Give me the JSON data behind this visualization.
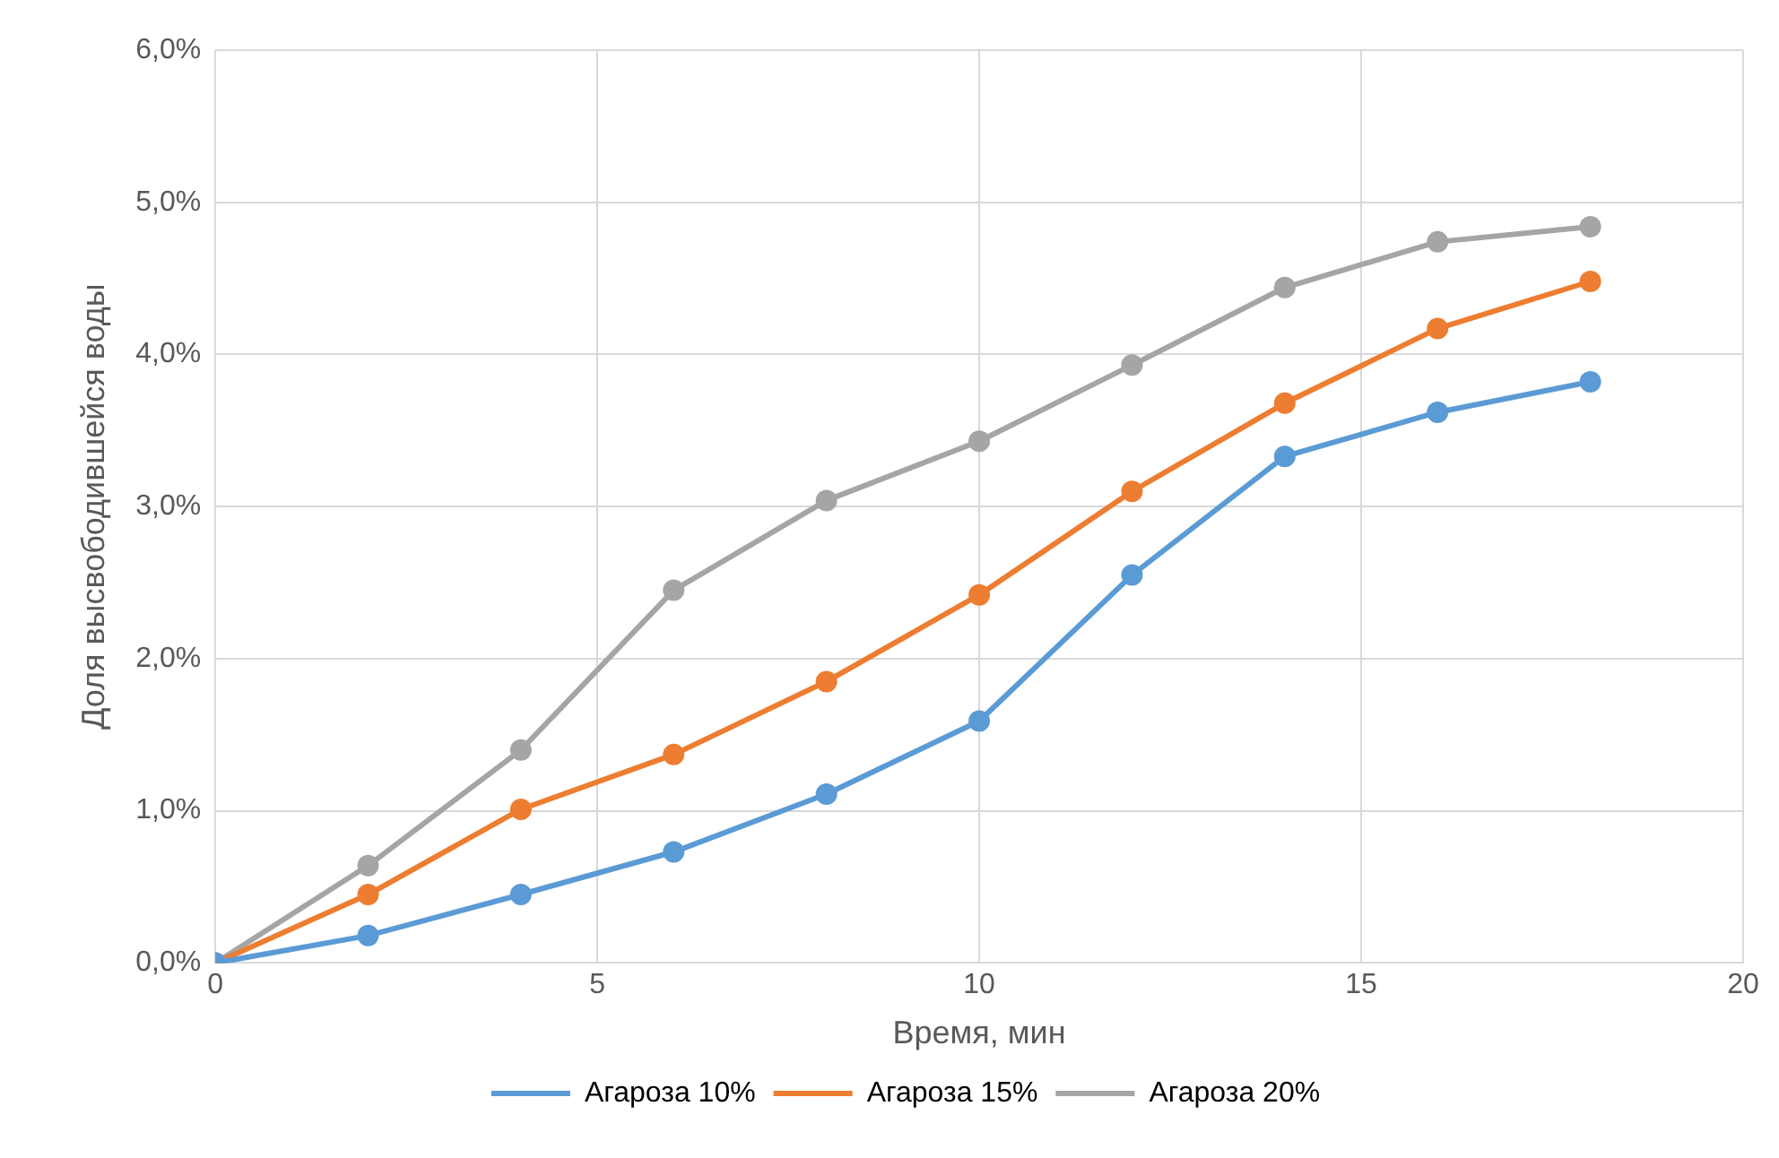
{
  "chart_data": {
    "type": "line",
    "xlabel": "Время, мин",
    "ylabel": "Доля высвободившейся воды",
    "x": [
      0,
      2,
      4,
      6,
      8,
      10,
      12,
      14,
      16,
      18
    ],
    "series": [
      {
        "name": "Агароза 10%",
        "color": "#5b9bd5",
        "values": [
          0,
          0.18,
          0.45,
          0.73,
          1.11,
          1.59,
          2.55,
          3.33,
          3.62,
          3.82
        ]
      },
      {
        "name": "Агароза 15%",
        "color": "#ed7d31",
        "values": [
          0,
          0.45,
          1.01,
          1.37,
          1.85,
          2.42,
          3.1,
          3.68,
          4.17,
          4.48
        ]
      },
      {
        "name": "Агароза 20%",
        "color": "#a5a5a5",
        "values": [
          0,
          0.64,
          1.4,
          2.45,
          3.04,
          3.43,
          3.93,
          4.44,
          4.74,
          4.84
        ]
      }
    ],
    "xlim": [
      0,
      20
    ],
    "xticks": [
      0,
      5,
      10,
      15,
      20
    ],
    "ylim": [
      0,
      6
    ],
    "yticks": [
      {
        "value": 0,
        "label": "0,0%"
      },
      {
        "value": 1,
        "label": "1,0%"
      },
      {
        "value": 2,
        "label": "2,0%"
      },
      {
        "value": 3,
        "label": "3,0%"
      },
      {
        "value": 4,
        "label": "4,0%"
      },
      {
        "value": 5,
        "label": "5,0%"
      },
      {
        "value": 6,
        "label": "6,0%"
      }
    ],
    "grid": true,
    "legend": "bottom",
    "marker": "circle",
    "line_style": "solid"
  }
}
